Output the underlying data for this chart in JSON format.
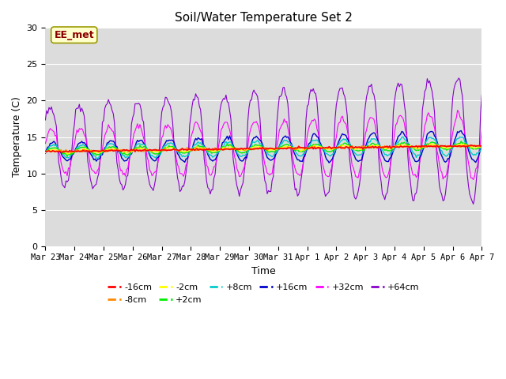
{
  "title": "Soil/Water Temperature Set 2",
  "xlabel": "Time",
  "ylabel": "Temperature (C)",
  "ylim": [
    0,
    30
  ],
  "yticks": [
    0,
    5,
    10,
    15,
    20,
    25,
    30
  ],
  "date_labels": [
    "Mar 23",
    "Mar 24",
    "Mar 25",
    "Mar 26",
    "Mar 27",
    "Mar 28",
    "Mar 29",
    "Mar 30",
    "Mar 31",
    "Apr 1",
    "Apr 2",
    "Apr 3",
    "Apr 4",
    "Apr 5",
    "Apr 6",
    "Apr 7"
  ],
  "annotation_text": "EE_met",
  "annotation_color": "#8B0000",
  "annotation_bg": "#FFFFCC",
  "background_color": "#DCDCDC",
  "legend_entries": [
    "-16cm",
    "-8cm",
    "-2cm",
    "+2cm",
    "+8cm",
    "+16cm",
    "+32cm",
    "+64cm"
  ],
  "line_colors": {
    "-16cm": "#FF0000",
    "-8cm": "#FF8800",
    "-2cm": "#FFFF00",
    "+2cm": "#00EE00",
    "+8cm": "#00CCCC",
    "+16cm": "#0000CC",
    "+32cm": "#FF00FF",
    "+64cm": "#8800CC"
  },
  "figsize": [
    6.4,
    4.8
  ],
  "dpi": 100
}
